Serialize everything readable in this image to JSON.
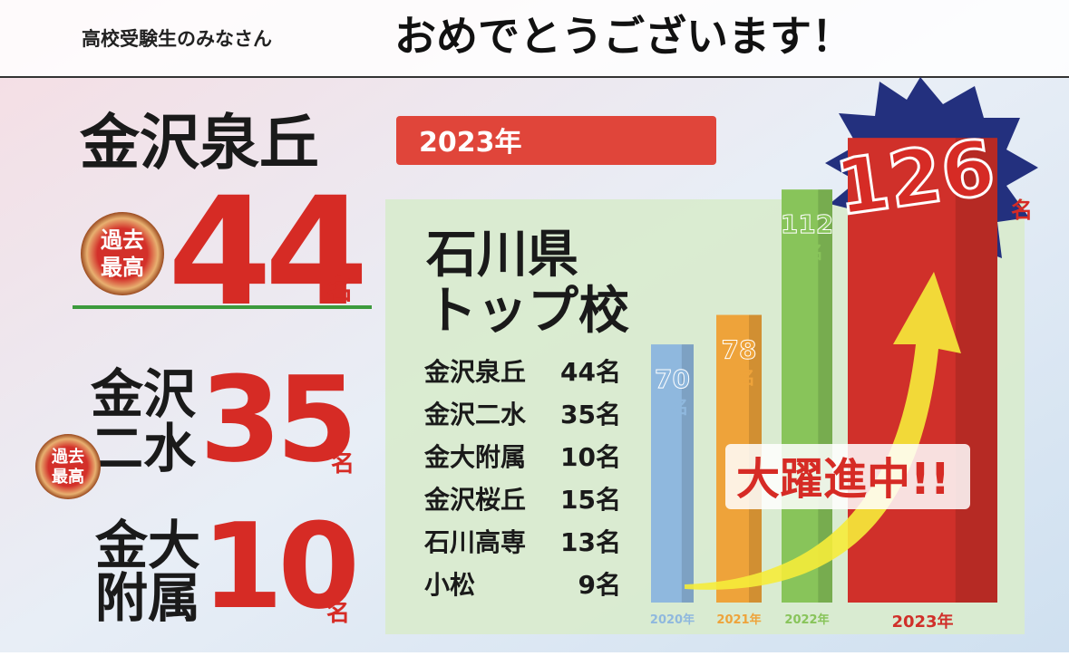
{
  "header": {
    "lead": "高校受験生のみなさん",
    "title": "おめでとうございます！"
  },
  "left": {
    "top": {
      "school": "金沢泉丘",
      "badge": [
        "過去",
        "最高"
      ],
      "number": "44",
      "unit": "名"
    },
    "second": {
      "school": [
        "金沢",
        "二水"
      ],
      "badge": [
        "過去",
        "最高"
      ],
      "number": "35",
      "unit": "名"
    },
    "third": {
      "school": [
        "金大",
        "附属"
      ],
      "number": "10",
      "unit": "名"
    }
  },
  "banner": "2023年",
  "panel": {
    "heading": [
      "石川県",
      "トップ校"
    ],
    "rows": [
      [
        "金沢泉丘",
        "44名"
      ],
      [
        "金沢二水",
        "35名"
      ],
      [
        "金大附属",
        "10名"
      ],
      [
        "金沢桜丘",
        "15名"
      ],
      [
        "石川高専",
        "13名"
      ],
      [
        "小松",
        "9名"
      ]
    ]
  },
  "bars": {
    "years": [
      "2020年",
      "2021年",
      "2022年",
      "2023年"
    ],
    "values": [
      70,
      78,
      112,
      126
    ],
    "unit": "名",
    "colors": [
      "#8fb8de",
      "#eea33a",
      "#88c45a",
      "#d0302a"
    ]
  },
  "slogan": "大躍進中!!"
}
